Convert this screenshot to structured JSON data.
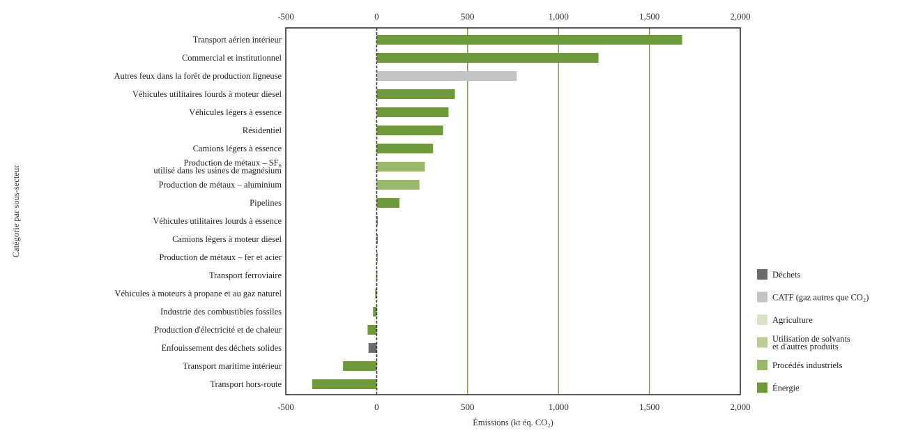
{
  "chart_data": {
    "type": "bar",
    "orientation": "horizontal",
    "xlabel": "Émissions (kt éq. CO₂)",
    "ylabel": "Catégorie par sous-secteur",
    "xlim": [
      -500,
      2000
    ],
    "xticks": [
      -500,
      0,
      500,
      1000,
      1500,
      2000
    ],
    "xtick_labels": [
      "-500",
      "0",
      "500",
      "1,000",
      "1,500",
      "2,000"
    ],
    "grid": "vertical",
    "legend_position": "right",
    "categories": [
      [
        "Transport aérien intérieur"
      ],
      [
        "Commercial et institutionnel"
      ],
      [
        "Autres feux dans la forêt de production ligneuse"
      ],
      [
        "Véhicules utilitaires lourds à moteur diesel"
      ],
      [
        "Véhicules légers à essence"
      ],
      [
        "Résidentiel"
      ],
      [
        "Camions légers à essence"
      ],
      [
        "Production de métaux – SF₆",
        "utilisé dans les usines de magnésium"
      ],
      [
        "Production de métaux – aluminium"
      ],
      [
        "Pipelines"
      ],
      [
        "Véhicules utilitaires lourds à essence"
      ],
      [
        "Camions légers à moteur diesel"
      ],
      [
        "Production de métaux – fer et acier"
      ],
      [
        "Transport ferroviaire"
      ],
      [
        "Véhicules à moteurs à propane et au gaz naturel"
      ],
      [
        "Industrie des combustibles fossiles"
      ],
      [
        "Production d'électricité et de chaleur"
      ],
      [
        "Enfouissement des déchets solides"
      ],
      [
        "Transport maritime intérieur"
      ],
      [
        "Transport hors-route"
      ]
    ],
    "values": [
      1680,
      1220,
      770,
      430,
      395,
      365,
      310,
      265,
      235,
      125,
      5,
      3,
      3,
      -2,
      -8,
      -20,
      -50,
      -45,
      -185,
      -355
    ],
    "bar_series": [
      "Énergie",
      "Énergie",
      "CATF (gaz autres que CO₂)",
      "Énergie",
      "Énergie",
      "Énergie",
      "Énergie",
      "Procédés industriels",
      "Procédés industriels",
      "Énergie",
      "Énergie",
      "Énergie",
      "Procédés industriels",
      "Énergie",
      "Énergie",
      "Énergie",
      "Énergie",
      "Déchets",
      "Énergie",
      "Énergie"
    ],
    "legend": [
      {
        "label": [
          "Déchets"
        ],
        "color": "#6b6b6e"
      },
      {
        "label": [
          "CATF (gaz autres que CO₂)"
        ],
        "color": "#c2c3c4"
      },
      {
        "label": [
          "Agriculture"
        ],
        "color": "#d9e2c8"
      },
      {
        "label": [
          "Utilisation de solvants",
          "et d'autres produits"
        ],
        "color": "#b8cc93"
      },
      {
        "label": [
          "Procédés industriels"
        ],
        "color": "#99b968"
      },
      {
        "label": [
          "Énergie"
        ],
        "color": "#6f9a3a"
      }
    ]
  },
  "colors": {
    "grid": "#6f9a3a",
    "frame": "#222222",
    "zero_line": "#333333"
  }
}
